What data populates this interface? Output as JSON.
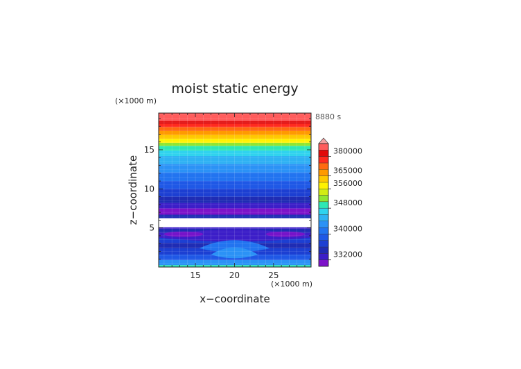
{
  "chart_data": {
    "type": "heatmap",
    "title": "moist static energy",
    "xlabel": "x−coordinate",
    "ylabel": "z−coordinate",
    "x_unit": "(×1000 m)",
    "y_unit": "(×1000 m)",
    "time_label": "8880 s",
    "xlim": [
      10.3,
      29.8
    ],
    "ylim": [
      0,
      19.7
    ],
    "x_ticks": [
      {
        "value": 15,
        "label": "15"
      },
      {
        "value": 20,
        "label": "20"
      },
      {
        "value": 25,
        "label": "25"
      }
    ],
    "y_ticks": [
      {
        "value": 5,
        "label": "5"
      },
      {
        "value": 10,
        "label": "10"
      },
      {
        "value": 15,
        "label": "15"
      }
    ],
    "grid": true,
    "colorbar": {
      "placement": "right",
      "extend": "max",
      "levels": [
        {
          "value": 328000,
          "color": "#7d12c9"
        },
        {
          "value": 332000,
          "color": "#3c1ec8"
        },
        {
          "value": 334000,
          "color": "#1f2cb4"
        },
        {
          "value": 336000,
          "color": "#1c3fd2"
        },
        {
          "value": 338000,
          "color": "#1f58e6"
        },
        {
          "value": 340000,
          "color": "#2274f0"
        },
        {
          "value": 342000,
          "color": "#2b92f6"
        },
        {
          "value": 344000,
          "color": "#2fb2f3"
        },
        {
          "value": 346000,
          "color": "#2fd3ee"
        },
        {
          "value": 348000,
          "color": "#2ee8b4"
        },
        {
          "value": 350000,
          "color": "#8fe632"
        },
        {
          "value": 352000,
          "color": "#d2ec14"
        },
        {
          "value": 356000,
          "color": "#fff200"
        },
        {
          "value": 360000,
          "color": "#ffc800"
        },
        {
          "value": 365000,
          "color": "#ff9a00"
        },
        {
          "value": 370000,
          "color": "#ff6a10"
        },
        {
          "value": 375000,
          "color": "#ff2a1e"
        },
        {
          "value": 380000,
          "color": "#e10a0a"
        },
        {
          "value": 385000,
          "color": "#ff5c5c"
        }
      ],
      "extend_color": "#f4a0a0",
      "tick_labels": [
        "332000",
        "340000",
        "348000",
        "356000",
        "365000",
        "380000"
      ]
    },
    "bands": [
      {
        "z0": 0.0,
        "z1": 0.25,
        "value": 348000
      },
      {
        "z0": 0.25,
        "z1": 0.9,
        "value": 342000
      },
      {
        "z0": 0.9,
        "z1": 1.6,
        "value": 338000
      },
      {
        "z0": 1.6,
        "z1": 2.4,
        "value": 336000
      },
      {
        "z0": 2.4,
        "z1": 3.1,
        "value": 334000
      },
      {
        "z0": 3.1,
        "z1": 3.8,
        "value": 336000
      },
      {
        "z0": 3.8,
        "z1": 4.4,
        "value": 332000
      },
      {
        "z0": 4.4,
        "z1": 4.9,
        "value": 334000
      },
      {
        "z0": 4.9,
        "z1": 5.1,
        "value": 332000
      },
      {
        "z0": 5.1,
        "z1": 6.25,
        "value": null
      },
      {
        "z0": 6.25,
        "z1": 6.7,
        "value": 334000
      },
      {
        "z0": 6.7,
        "z1": 7.5,
        "value": 328000
      },
      {
        "z0": 7.5,
        "z1": 8.2,
        "value": 332000
      },
      {
        "z0": 8.2,
        "z1": 9.0,
        "value": 334000
      },
      {
        "z0": 9.0,
        "z1": 10.0,
        "value": 336000
      },
      {
        "z0": 10.0,
        "z1": 11.0,
        "value": 338000
      },
      {
        "z0": 11.0,
        "z1": 12.1,
        "value": 340000
      },
      {
        "z0": 12.1,
        "z1": 13.2,
        "value": 342000
      },
      {
        "z0": 13.2,
        "z1": 14.2,
        "value": 344000
      },
      {
        "z0": 14.2,
        "z1": 14.9,
        "value": 346000
      },
      {
        "z0": 14.9,
        "z1": 15.5,
        "value": 348000
      },
      {
        "z0": 15.5,
        "z1": 15.9,
        "value": 350000
      },
      {
        "z0": 15.9,
        "z1": 16.4,
        "value": 356000
      },
      {
        "z0": 16.4,
        "z1": 16.9,
        "value": 360000
      },
      {
        "z0": 16.9,
        "z1": 17.4,
        "value": 365000
      },
      {
        "z0": 17.4,
        "z1": 17.9,
        "value": 370000
      },
      {
        "z0": 17.9,
        "z1": 18.3,
        "value": 375000
      },
      {
        "z0": 18.3,
        "z1": 18.7,
        "value": 380000
      },
      {
        "z0": 18.7,
        "z1": 19.7,
        "value": 385000
      }
    ],
    "features": [
      {
        "kind": "lens",
        "x_center": 20,
        "half_width": 10,
        "z_base": 3.8,
        "z_top": 5.6,
        "value": 332000
      },
      {
        "kind": "lens",
        "x_center": 20,
        "half_width": 4.5,
        "z_base": 2.4,
        "z_top": 4.2,
        "value": 340000
      },
      {
        "kind": "lens",
        "x_center": 20,
        "half_width": 3.0,
        "z_base": 1.6,
        "z_top": 3.2,
        "value": 342000
      },
      {
        "kind": "blob",
        "x_center": 13.5,
        "half_width": 2.5,
        "z_center": 4.2,
        "half_height": 0.35,
        "value": 328000
      },
      {
        "kind": "blob",
        "x_center": 26.5,
        "half_width": 2.5,
        "z_center": 4.2,
        "half_height": 0.35,
        "value": 328000
      }
    ]
  }
}
